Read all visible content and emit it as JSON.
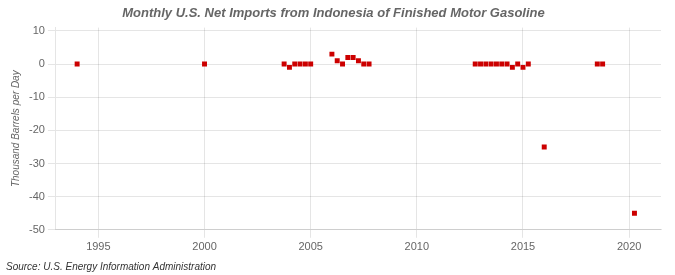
{
  "chart_data": {
    "type": "scatter",
    "title": "Monthly U.S. Net Imports from Indonesia of Finished Motor Gasoline",
    "ylabel": "Thousand Barrels per Day",
    "source": "Source: U.S. Energy Information Administration",
    "x": [
      1994.0,
      2000.0,
      2003.75,
      2004.0,
      2004.25,
      2004.5,
      2004.75,
      2005.0,
      2006.0,
      2006.25,
      2006.5,
      2006.75,
      2007.0,
      2007.25,
      2007.5,
      2007.75,
      2012.75,
      2013.0,
      2013.25,
      2013.5,
      2013.75,
      2014.0,
      2014.25,
      2014.5,
      2014.75,
      2015.0,
      2015.25,
      2016.0,
      2018.5,
      2018.75,
      2020.25
    ],
    "values": [
      0,
      0,
      0,
      -1,
      0,
      0,
      0,
      0,
      3,
      1,
      0,
      2,
      2,
      1,
      0,
      0,
      0,
      0,
      0,
      0,
      0,
      0,
      0,
      -1,
      0,
      -1,
      0,
      -25,
      0,
      0,
      -45
    ],
    "color": "#cc0000",
    "marker": "square",
    "xlim": [
      1993.0,
      2021.5
    ],
    "ylim": [
      -50,
      11
    ],
    "xticks": [
      1995,
      2000,
      2005,
      2010,
      2015,
      2020
    ],
    "yticks": [
      10,
      0,
      -10,
      -20,
      -30,
      -40,
      -50
    ],
    "grid": true
  }
}
